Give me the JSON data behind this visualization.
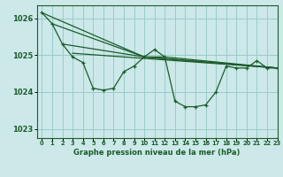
{
  "title": "Graphe pression niveau de la mer (hPa)",
  "xlim": [
    -0.5,
    23
  ],
  "ylim": [
    1022.75,
    1026.35
  ],
  "yticks": [
    1023,
    1024,
    1025,
    1026
  ],
  "xticks": [
    0,
    1,
    2,
    3,
    4,
    5,
    6,
    7,
    8,
    9,
    10,
    11,
    12,
    13,
    14,
    15,
    16,
    17,
    18,
    19,
    20,
    21,
    22,
    23
  ],
  "bg_color": "#cce8e8",
  "grid_color": "#99cccc",
  "line_color": "#1a5c2a",
  "series_main": {
    "x": [
      0,
      1,
      2,
      3,
      4,
      5,
      6,
      7,
      8,
      9,
      10,
      11,
      12,
      13,
      14,
      15,
      16,
      17,
      18,
      19,
      20,
      21,
      22,
      23
    ],
    "y": [
      1026.15,
      1025.85,
      1025.3,
      1024.95,
      1024.8,
      1024.1,
      1024.05,
      1024.1,
      1024.55,
      1024.7,
      1024.95,
      1025.15,
      1024.95,
      1023.75,
      1023.6,
      1023.6,
      1023.65,
      1024.0,
      1024.7,
      1024.65,
      1024.65,
      1024.85,
      1024.65,
      1024.65
    ]
  },
  "series_smooth1": {
    "x": [
      0,
      10,
      12,
      23
    ],
    "y": [
      1026.15,
      1024.95,
      1024.95,
      1024.65
    ]
  },
  "series_smooth2": {
    "x": [
      1,
      10,
      23
    ],
    "y": [
      1025.85,
      1024.95,
      1024.65
    ]
  },
  "series_smooth3": {
    "x": [
      2,
      10,
      23
    ],
    "y": [
      1025.3,
      1024.95,
      1024.65
    ]
  },
  "series_smooth4": {
    "x": [
      3,
      23
    ],
    "y": [
      1025.05,
      1024.65
    ]
  }
}
